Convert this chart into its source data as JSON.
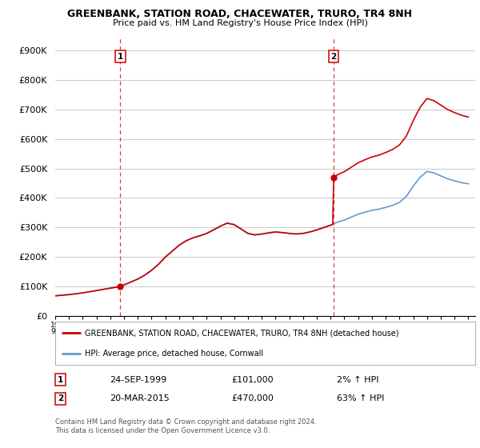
{
  "title": "GREENBANK, STATION ROAD, CHACEWATER, TRURO, TR4 8NH",
  "subtitle": "Price paid vs. HM Land Registry's House Price Index (HPI)",
  "ylabel_ticks": [
    "£0",
    "£100K",
    "£200K",
    "£300K",
    "£400K",
    "£500K",
    "£600K",
    "£700K",
    "£800K",
    "£900K"
  ],
  "ylim": [
    0,
    950000
  ],
  "xlim_start": 1995.0,
  "xlim_end": 2025.5,
  "legend_line1": "GREENBANK, STATION ROAD, CHACEWATER, TRURO, TR4 8NH (detached house)",
  "legend_line2": "HPI: Average price, detached house, Cornwall",
  "sale1_label": "1",
  "sale1_date": "24-SEP-1999",
  "sale1_price": "£101,000",
  "sale1_hpi": "2% ↑ HPI",
  "sale1_year": 1999.73,
  "sale1_value": 101000,
  "sale2_label": "2",
  "sale2_date": "20-MAR-2015",
  "sale2_price": "£470,000",
  "sale2_hpi": "63% ↑ HPI",
  "sale2_year": 2015.21,
  "sale2_value": 470000,
  "footer": "Contains HM Land Registry data © Crown copyright and database right 2024.\nThis data is licensed under the Open Government Licence v3.0.",
  "hpi_color": "#6699cc",
  "property_color": "#cc0000",
  "sale_vline_color": "#cc0000",
  "background_color": "#ffffff",
  "grid_color": "#cccccc"
}
